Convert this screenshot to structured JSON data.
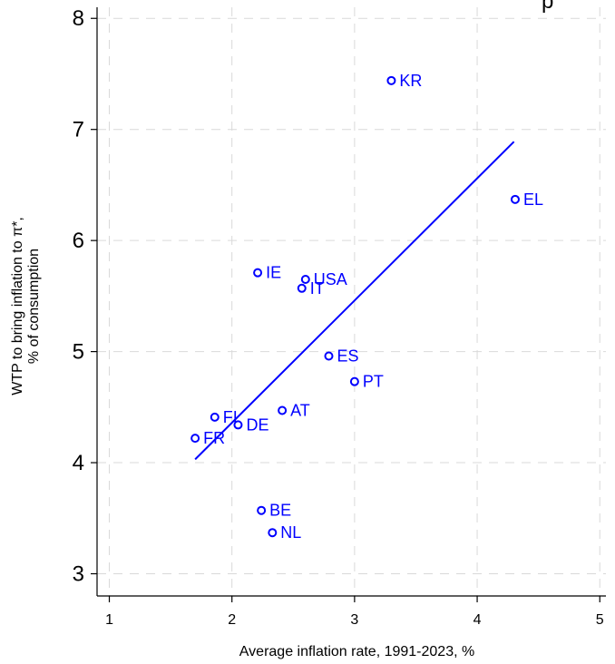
{
  "chart_data": {
    "type": "scatter",
    "title_fragment": "p",
    "xlabel": "Average inflation rate, 1991-2023, %",
    "ylabel": [
      "WTP to bring inflation to π*,",
      "% of consumption"
    ],
    "xlim": [
      0.9,
      5.05
    ],
    "ylim": [
      2.8,
      8.1
    ],
    "x_ticks": [
      1,
      2,
      3,
      4,
      5
    ],
    "y_ticks": [
      3,
      4,
      5,
      6,
      7,
      8
    ],
    "grid": true,
    "point_color": "#0000ff",
    "points": [
      {
        "label": "KR",
        "x": 3.3,
        "y": 7.44
      },
      {
        "label": "EL",
        "x": 4.31,
        "y": 6.37
      },
      {
        "label": "IE",
        "x": 2.21,
        "y": 5.71
      },
      {
        "label": "USA",
        "x": 2.6,
        "y": 5.65
      },
      {
        "label": "IT",
        "x": 2.57,
        "y": 5.57
      },
      {
        "label": "ES",
        "x": 2.79,
        "y": 4.96
      },
      {
        "label": "PT",
        "x": 3.0,
        "y": 4.73
      },
      {
        "label": "AT",
        "x": 2.41,
        "y": 4.47
      },
      {
        "label": "FI",
        "x": 1.86,
        "y": 4.41
      },
      {
        "label": "DE",
        "x": 2.05,
        "y": 4.34
      },
      {
        "label": "FR",
        "x": 1.7,
        "y": 4.22
      },
      {
        "label": "BE",
        "x": 2.24,
        "y": 3.57
      },
      {
        "label": "NL",
        "x": 2.33,
        "y": 3.37
      }
    ],
    "fit_line": {
      "x1": 1.7,
      "y1": 4.03,
      "x2": 4.3,
      "y2": 6.89
    }
  }
}
